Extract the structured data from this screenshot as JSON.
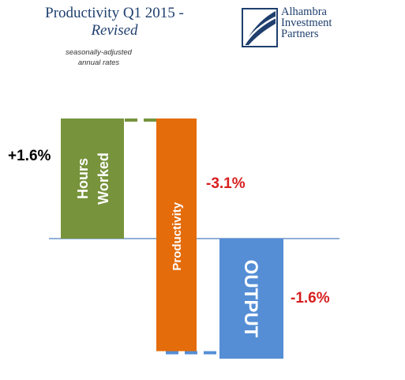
{
  "header": {
    "title": "Productivity Q1 2015 -",
    "subtitle": "Revised",
    "note_line1": "seasonally-adjusted",
    "note_line2": "annual rates"
  },
  "logo": {
    "icon": "alhambra-logo-icon",
    "line1": "Alhambra",
    "line2": "Investment",
    "line3": "Partners"
  },
  "colors": {
    "hours": "#77933c",
    "productivity": "#e46c0a",
    "output": "#558ed5",
    "baseline": "#4f81bd",
    "positive_label": "#000000",
    "negative_label": "#d81e1e"
  },
  "chart_data": {
    "type": "bar",
    "categories": [
      "Hours Worked",
      "Productivity",
      "OUTPUT"
    ],
    "bar_labels": [
      [
        "Hours",
        "Worked"
      ],
      [
        "Productivity"
      ],
      [
        "OUTPUT"
      ]
    ],
    "values": [
      1.6,
      -3.1,
      -1.6
    ],
    "value_labels": [
      "+1.6%",
      "-3.1%",
      "-1.6%"
    ],
    "layout": "waterfall",
    "grid": false,
    "legend": "none"
  }
}
